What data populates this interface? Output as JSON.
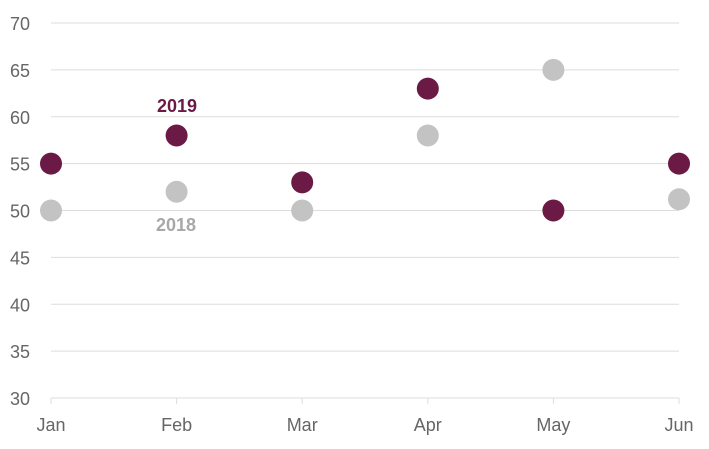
{
  "colors": {
    "series_2019": "#6b1a45",
    "series_2018": "#c3c3c3",
    "label_2018": "#a8a8a8",
    "grid": "#dddddd",
    "axis_text": "#666666"
  },
  "chart_data": {
    "type": "scatter",
    "categories": [
      "Jan",
      "Feb",
      "Mar",
      "Apr",
      "May",
      "Jun"
    ],
    "y_ticks": [
      "30",
      "35",
      "40",
      "45",
      "50",
      "55",
      "60",
      "65",
      "70"
    ],
    "ylim": [
      30,
      70
    ],
    "grid": true,
    "legend": "inline labels near Feb points",
    "series": [
      {
        "name": "2018",
        "values": [
          50,
          52,
          50,
          58,
          65,
          51.2
        ]
      },
      {
        "name": "2019",
        "values": [
          55,
          58,
          53,
          63,
          50,
          55
        ]
      }
    ]
  }
}
